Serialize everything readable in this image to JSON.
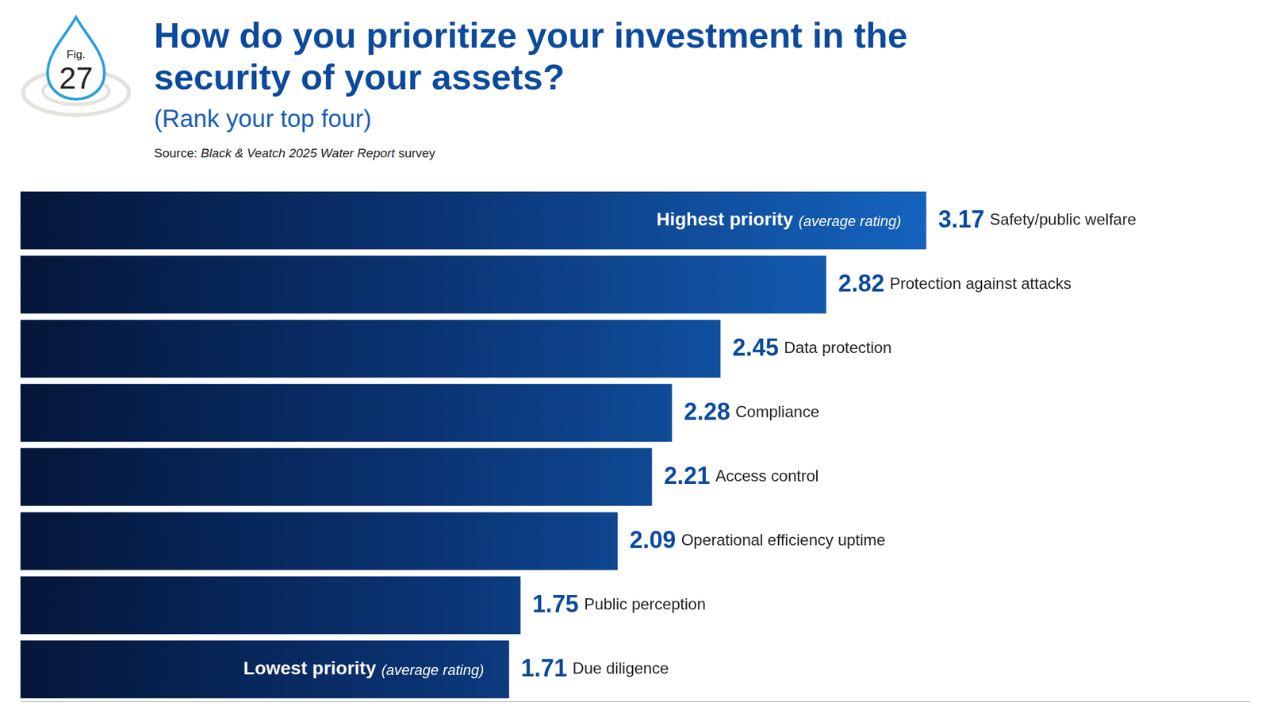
{
  "chart_data": {
    "type": "bar",
    "orientation": "horizontal",
    "figure": {
      "label": "Fig.",
      "number": "27"
    },
    "title": "How do you prioritize your investment in the security of your assets?",
    "subtitle": "(Rank your top four)",
    "source": [
      "Source:",
      "Black & Veatch 2025 Water Report",
      "survey"
    ],
    "categories": [
      "Safety/public welfare",
      "Protection against attacks",
      "Data protection",
      "Compliance",
      "Access control",
      "Operational efficiency uptime",
      "Public perception",
      "Due diligence"
    ],
    "values": [
      3.17,
      2.82,
      2.45,
      2.28,
      2.21,
      2.09,
      1.75,
      1.71
    ],
    "color": "#1565c0",
    "xlim": [
      0,
      4.3
    ],
    "grid": false,
    "tick_labels": false,
    "data_labels": true,
    "annotations": [
      {
        "category": "Safety/public welfare",
        "text": "Highest priority",
        "note": "(average rating)"
      },
      {
        "category": "Due diligence",
        "text": "Lowest priority",
        "note": "(average rating)"
      }
    ]
  }
}
